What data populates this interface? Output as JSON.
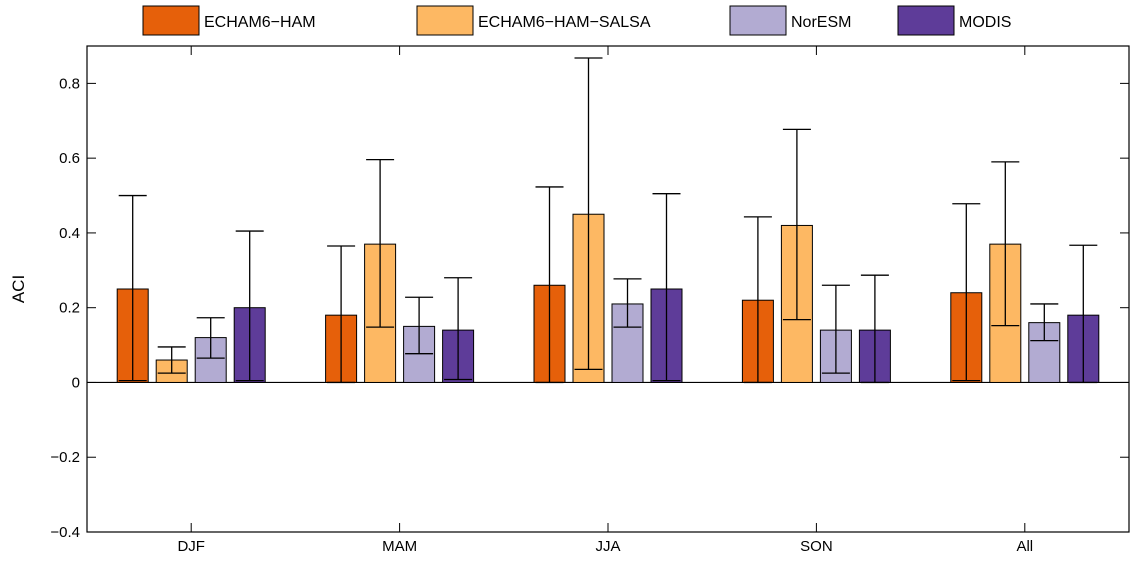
{
  "chart_data": {
    "type": "bar",
    "categories": [
      "DJF",
      "MAM",
      "JJA",
      "SON",
      "All"
    ],
    "series": [
      {
        "name": "ECHAM6−HAM",
        "color": "#e6600a",
        "values": [
          0.25,
          0.18,
          0.26,
          0.22,
          0.24
        ],
        "err_low": [
          0.005,
          0.0,
          0.0,
          0.0,
          0.005
        ],
        "err_high": [
          0.5,
          0.365,
          0.523,
          0.443,
          0.478
        ]
      },
      {
        "name": "ECHAM6−HAM−SALSA",
        "color": "#fdb863",
        "values": [
          0.06,
          0.37,
          0.45,
          0.42,
          0.37
        ],
        "err_low": [
          0.025,
          0.148,
          0.035,
          0.168,
          0.152
        ],
        "err_high": [
          0.095,
          0.596,
          0.868,
          0.677,
          0.59
        ]
      },
      {
        "name": "NorESM",
        "color": "#b2abd2",
        "values": [
          0.12,
          0.15,
          0.21,
          0.14,
          0.16
        ],
        "err_low": [
          0.065,
          0.077,
          0.148,
          0.025,
          0.112
        ],
        "err_high": [
          0.173,
          0.228,
          0.277,
          0.26,
          0.21
        ]
      },
      {
        "name": "MODIS",
        "color": "#5e3c99",
        "values": [
          0.2,
          0.14,
          0.25,
          0.14,
          0.18
        ],
        "err_low": [
          0.005,
          0.008,
          0.005,
          0.0,
          0.0
        ],
        "err_high": [
          0.405,
          0.28,
          0.505,
          0.287,
          0.367
        ]
      }
    ],
    "ylabel": "ACI",
    "ylim": [
      -0.4,
      0.9
    ],
    "yticks": [
      -0.4,
      -0.2,
      0,
      0.2,
      0.4,
      0.6,
      0.8
    ],
    "ytick_labels": [
      "−0.4",
      "−0.2",
      "0",
      "0.2",
      "0.4",
      "0.6",
      "0.8"
    ],
    "legend_position": "top",
    "grid": false
  }
}
